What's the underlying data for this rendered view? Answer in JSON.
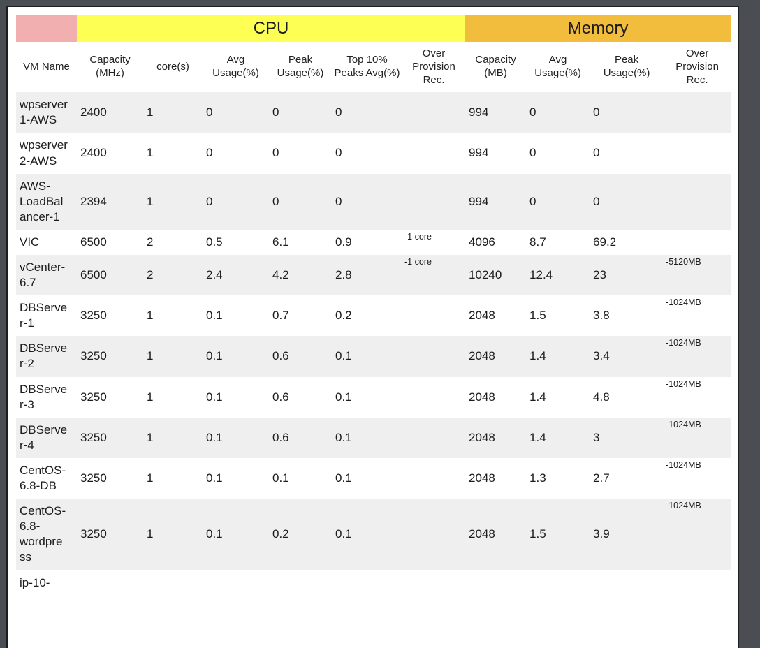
{
  "colors": {
    "frame_background": "#4A4E53",
    "panel_background": "#FFFFFF",
    "pink_corner": "#F2AFAF",
    "cpu_band_yellow": "#FDFF54",
    "memory_band_orange": "#F2BC3D",
    "over_provision_orange": "#F3C64B",
    "over_provision_green": "#71F74C",
    "row_stripe_gray": "#EFEFEF",
    "text": "#1C1C1C"
  },
  "table": {
    "band_headers": {
      "vm": "",
      "cpu": "CPU",
      "memory": "Memory"
    },
    "columns": [
      "VM Name",
      "Capacity (MHz)",
      "core(s)",
      "Avg Usage(%)",
      "Peak Usage(%)",
      "Top 10% Peaks Avg(%)",
      "Over Provision Rec.",
      "Capacity (MB)",
      "Avg Usage(%)",
      "Peak Usage(%)",
      "Over Provision Rec."
    ],
    "rows": [
      {
        "name": "wpserver1-AWS",
        "cpu_capacity": "2400",
        "cores": "1",
        "cpu_avg": "0",
        "cpu_peak": "0",
        "cpu_top10": "0",
        "cpu_over": "",
        "cpu_over_bg": "",
        "mem_capacity": "994",
        "mem_avg": "0",
        "mem_peak": "0",
        "mem_over": "",
        "mem_over_bg": ""
      },
      {
        "name": "wpserver2-AWS",
        "cpu_capacity": "2400",
        "cores": "1",
        "cpu_avg": "0",
        "cpu_peak": "0",
        "cpu_top10": "0",
        "cpu_over": "",
        "cpu_over_bg": "",
        "mem_capacity": "994",
        "mem_avg": "0",
        "mem_peak": "0",
        "mem_over": "",
        "mem_over_bg": ""
      },
      {
        "name": "AWS-LoadBalancer-1",
        "cpu_capacity": "2394",
        "cores": "1",
        "cpu_avg": "0",
        "cpu_peak": "0",
        "cpu_top10": "0",
        "cpu_over": "",
        "cpu_over_bg": "",
        "mem_capacity": "994",
        "mem_avg": "0",
        "mem_peak": "0",
        "mem_over": "",
        "mem_over_bg": ""
      },
      {
        "name": "VIC",
        "cpu_capacity": "6500",
        "cores": "2",
        "cpu_avg": "0.5",
        "cpu_peak": "6.1",
        "cpu_top10": "0.9",
        "cpu_over": "-1 core",
        "cpu_over_bg": "orange",
        "mem_capacity": "4096",
        "mem_avg": "8.7",
        "mem_peak": "69.2",
        "mem_over": "",
        "mem_over_bg": "green"
      },
      {
        "name": "vCenter-6.7",
        "cpu_capacity": "6500",
        "cores": "2",
        "cpu_avg": "2.4",
        "cpu_peak": "4.2",
        "cpu_top10": "2.8",
        "cpu_over": "-1 core",
        "cpu_over_bg": "orange",
        "mem_capacity": "10240",
        "mem_avg": "12.4",
        "mem_peak": "23",
        "mem_over": "-5120MB",
        "mem_over_bg": "orange"
      },
      {
        "name": "DBServer-1",
        "cpu_capacity": "3250",
        "cores": "1",
        "cpu_avg": "0.1",
        "cpu_peak": "0.7",
        "cpu_top10": "0.2",
        "cpu_over": "",
        "cpu_over_bg": "",
        "mem_capacity": "2048",
        "mem_avg": "1.5",
        "mem_peak": "3.8",
        "mem_over": "-1024MB",
        "mem_over_bg": "orange"
      },
      {
        "name": "DBServer-2",
        "cpu_capacity": "3250",
        "cores": "1",
        "cpu_avg": "0.1",
        "cpu_peak": "0.6",
        "cpu_top10": "0.1",
        "cpu_over": "",
        "cpu_over_bg": "",
        "mem_capacity": "2048",
        "mem_avg": "1.4",
        "mem_peak": "3.4",
        "mem_over": "-1024MB",
        "mem_over_bg": "orange"
      },
      {
        "name": "DBServer-3",
        "cpu_capacity": "3250",
        "cores": "1",
        "cpu_avg": "0.1",
        "cpu_peak": "0.6",
        "cpu_top10": "0.1",
        "cpu_over": "",
        "cpu_over_bg": "",
        "mem_capacity": "2048",
        "mem_avg": "1.4",
        "mem_peak": "4.8",
        "mem_over": "-1024MB",
        "mem_over_bg": "orange"
      },
      {
        "name": "DBServer-4",
        "cpu_capacity": "3250",
        "cores": "1",
        "cpu_avg": "0.1",
        "cpu_peak": "0.6",
        "cpu_top10": "0.1",
        "cpu_over": "",
        "cpu_over_bg": "",
        "mem_capacity": "2048",
        "mem_avg": "1.4",
        "mem_peak": "3",
        "mem_over": "-1024MB",
        "mem_over_bg": "orange"
      },
      {
        "name": "CentOS-6.8-DB",
        "cpu_capacity": "3250",
        "cores": "1",
        "cpu_avg": "0.1",
        "cpu_peak": "0.1",
        "cpu_top10": "0.1",
        "cpu_over": "",
        "cpu_over_bg": "",
        "mem_capacity": "2048",
        "mem_avg": "1.3",
        "mem_peak": "2.7",
        "mem_over": "-1024MB",
        "mem_over_bg": "orange"
      },
      {
        "name": "CentOS-6.8-wordpress",
        "cpu_capacity": "3250",
        "cores": "1",
        "cpu_avg": "0.1",
        "cpu_peak": "0.2",
        "cpu_top10": "0.1",
        "cpu_over": "",
        "cpu_over_bg": "",
        "mem_capacity": "2048",
        "mem_avg": "1.5",
        "mem_peak": "3.9",
        "mem_over": "-1024MB",
        "mem_over_bg": "orange"
      },
      {
        "name": "ip-10-",
        "cpu_capacity": "",
        "cores": "",
        "cpu_avg": "",
        "cpu_peak": "",
        "cpu_top10": "",
        "cpu_over": "",
        "cpu_over_bg": "",
        "mem_capacity": "",
        "mem_avg": "",
        "mem_peak": "",
        "mem_over": "",
        "mem_over_bg": ""
      }
    ]
  }
}
